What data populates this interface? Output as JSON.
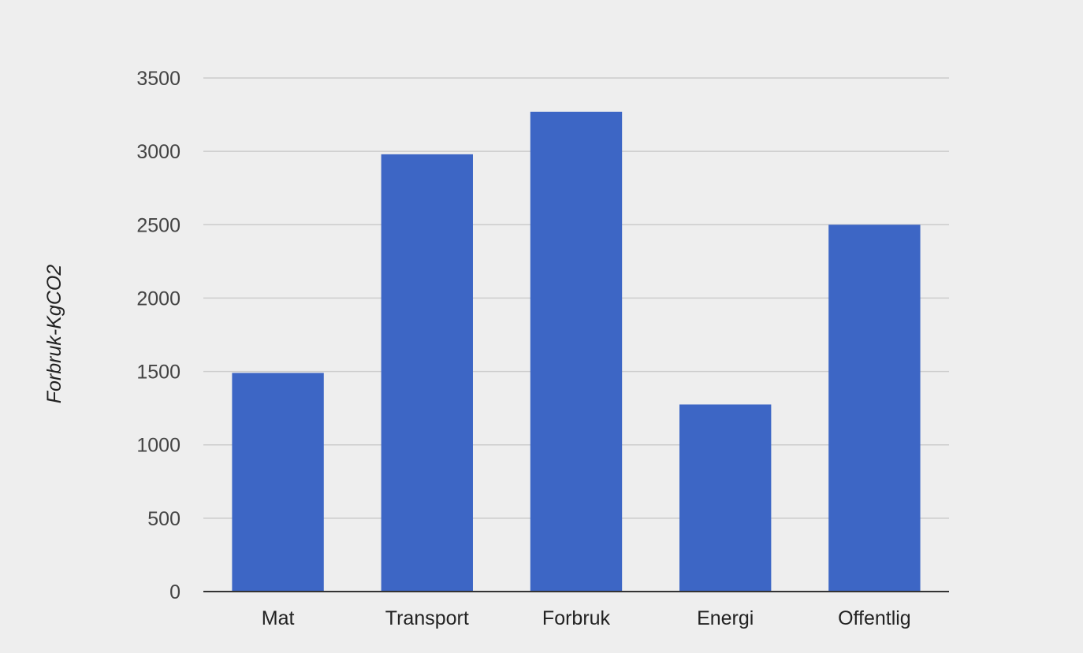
{
  "chart_data": {
    "type": "bar",
    "categories": [
      "Mat",
      "Transport",
      "Forbruk",
      "Energi",
      "Offentlig"
    ],
    "values": [
      1490,
      2980,
      3270,
      1275,
      2500
    ],
    "title": "",
    "xlabel": "",
    "ylabel": "Forbruk-KgCO2",
    "ylim": [
      0,
      3500
    ],
    "yticks": [
      "0",
      "500",
      "1000",
      "1500",
      "2000",
      "2500",
      "3000",
      "3500"
    ],
    "grid": true,
    "legend": "none",
    "bar_color": "#3d66c5",
    "background_color": "#eeeeee",
    "gridline_color": "#cccccc"
  }
}
